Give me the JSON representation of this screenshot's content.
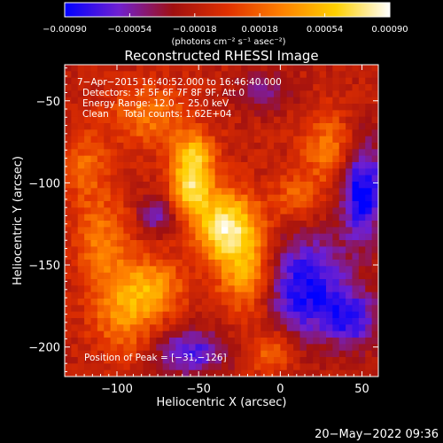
{
  "chart_data": {
    "type": "heatmap",
    "title": "Reconstructed RHESSI Image",
    "xlabel": "Heliocentric X (arcsec)",
    "ylabel": "Heliocentric Y (arcsec)",
    "xlim": [
      -132,
      60
    ],
    "ylim": [
      -218,
      -28
    ],
    "x_ticks": [
      -100,
      -50,
      0,
      50
    ],
    "x_tick_labels": [
      "−100",
      "−50",
      "0",
      "50"
    ],
    "y_ticks": [
      -50,
      -100,
      -150,
      -200
    ],
    "y_tick_labels": [
      "−50",
      "−100",
      "−150",
      "−200"
    ],
    "colorbar": {
      "min": -0.0009,
      "max": 0.0009,
      "ticks": [
        -0.0009,
        -0.00054,
        -0.00018,
        0.00018,
        0.00054,
        0.0009
      ],
      "tick_labels": [
        "−0.00090",
        "−0.00054",
        "−0.00018",
        "0.00018",
        "0.00054",
        "0.00090"
      ],
      "unit_label": "(photons cm⁻² s⁻¹ asec⁻²)",
      "colors": [
        "#0000ff",
        "#7020d0",
        "#a01010",
        "#e03000",
        "#ff8000",
        "#ffd000",
        "#ffffff"
      ]
    },
    "annotations": {
      "time_range": "7−Apr−2015 16:40:52.000 to 16:46:40.000",
      "detectors": "Detectors: 3F 5F 6F 7F 8F 9F, Att 0",
      "energy": "Energy Range: 12.0 − 25.0 keV",
      "clean": "Clean     Total counts: 1.62E+04",
      "peak": "Position of Peak = [−31,−126]"
    },
    "peak_position": [
      -31,
      -126
    ],
    "emission_sources": [
      {
        "x": -33,
        "y": -128,
        "peak": 1.0,
        "sx": 14,
        "sy": 16
      },
      {
        "x": -55,
        "y": -102,
        "peak": 0.88,
        "sx": 9,
        "sy": 13
      },
      {
        "x": -52,
        "y": -82,
        "peak": 0.55,
        "sx": 9,
        "sy": 9
      },
      {
        "x": -20,
        "y": -158,
        "peak": 0.62,
        "sx": 12,
        "sy": 18
      },
      {
        "x": -95,
        "y": -178,
        "peak": 0.6,
        "sx": 14,
        "sy": 20
      },
      {
        "x": -75,
        "y": -165,
        "peak": 0.5,
        "sx": 12,
        "sy": 12
      },
      {
        "x": -110,
        "y": -135,
        "peak": 0.45,
        "sx": 12,
        "sy": 20
      },
      {
        "x": 30,
        "y": -80,
        "peak": 0.5,
        "sx": 12,
        "sy": 16
      },
      {
        "x": 10,
        "y": -110,
        "peak": 0.38,
        "sx": 10,
        "sy": 10
      },
      {
        "x": -5,
        "y": -205,
        "peak": 0.42,
        "sx": 10,
        "sy": 10
      },
      {
        "x": -80,
        "y": -60,
        "peak": 0.45,
        "sx": 18,
        "sy": 14
      },
      {
        "x": -120,
        "y": -90,
        "peak": 0.38,
        "sx": 10,
        "sy": 14
      }
    ],
    "negative_regions": [
      {
        "x": 15,
        "y": -165,
        "depth": -0.8,
        "sx": 18,
        "sy": 22
      },
      {
        "x": -75,
        "y": -120,
        "depth": -0.5,
        "sx": 8,
        "sy": 8
      },
      {
        "x": 50,
        "y": -105,
        "depth": -0.85,
        "sx": 10,
        "sy": 22
      },
      {
        "x": 45,
        "y": -185,
        "depth": -0.6,
        "sx": 12,
        "sy": 12
      },
      {
        "x": -55,
        "y": -205,
        "depth": -0.6,
        "sx": 16,
        "sy": 10
      },
      {
        "x": -10,
        "y": -45,
        "depth": -0.4,
        "sx": 12,
        "sy": 8
      }
    ]
  },
  "footer": {
    "timestamp": "20−May−2022 09:36"
  }
}
